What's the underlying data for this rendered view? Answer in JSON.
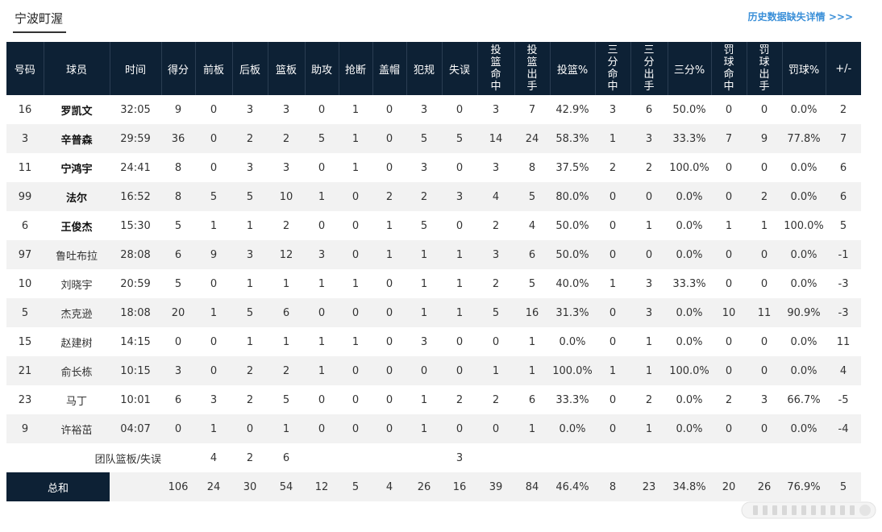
{
  "team_tab": "宁波町渥",
  "history_link": "历史数据缺失详情 >>>",
  "headers": [
    "号码",
    "球员",
    "时间",
    "得分",
    "前板",
    "后板",
    "篮板",
    "助攻",
    "抢断",
    "盖帽",
    "犯规",
    "失误",
    "投篮命中",
    "投篮出手",
    "投篮%",
    "三分命中",
    "三分出手",
    "三分%",
    "罚球命中",
    "罚球出手",
    "罚球%",
    "+/-"
  ],
  "players": [
    {
      "num": "16",
      "name": "罗凯文",
      "starter": true,
      "stats": [
        "32:05",
        "9",
        "0",
        "3",
        "3",
        "0",
        "1",
        "0",
        "3",
        "0",
        "3",
        "7",
        "42.9%",
        "3",
        "6",
        "50.0%",
        "0",
        "0",
        "0.0%",
        "2"
      ]
    },
    {
      "num": "3",
      "name": "辛普森",
      "starter": true,
      "stats": [
        "29:59",
        "36",
        "0",
        "2",
        "2",
        "5",
        "1",
        "0",
        "5",
        "5",
        "14",
        "24",
        "58.3%",
        "1",
        "3",
        "33.3%",
        "7",
        "9",
        "77.8%",
        "7"
      ]
    },
    {
      "num": "11",
      "name": "宁鸿宇",
      "starter": true,
      "stats": [
        "24:41",
        "8",
        "0",
        "3",
        "3",
        "0",
        "1",
        "0",
        "3",
        "0",
        "3",
        "8",
        "37.5%",
        "2",
        "2",
        "100.0%",
        "0",
        "0",
        "0.0%",
        "6"
      ]
    },
    {
      "num": "99",
      "name": "法尔",
      "starter": true,
      "stats": [
        "16:52",
        "8",
        "5",
        "5",
        "10",
        "1",
        "0",
        "2",
        "2",
        "3",
        "4",
        "5",
        "80.0%",
        "0",
        "0",
        "0.0%",
        "0",
        "2",
        "0.0%",
        "6"
      ]
    },
    {
      "num": "6",
      "name": "王俊杰",
      "starter": true,
      "stats": [
        "15:30",
        "5",
        "1",
        "1",
        "2",
        "0",
        "0",
        "1",
        "5",
        "0",
        "2",
        "4",
        "50.0%",
        "0",
        "1",
        "0.0%",
        "1",
        "1",
        "100.0%",
        "5"
      ]
    },
    {
      "num": "97",
      "name": "鲁吐布拉",
      "starter": false,
      "stats": [
        "28:08",
        "6",
        "9",
        "3",
        "12",
        "3",
        "0",
        "1",
        "1",
        "1",
        "3",
        "6",
        "50.0%",
        "0",
        "0",
        "0.0%",
        "0",
        "0",
        "0.0%",
        "-1"
      ]
    },
    {
      "num": "10",
      "name": "刘晓宇",
      "starter": false,
      "stats": [
        "20:59",
        "5",
        "0",
        "1",
        "1",
        "1",
        "1",
        "0",
        "1",
        "1",
        "2",
        "5",
        "40.0%",
        "1",
        "3",
        "33.3%",
        "0",
        "0",
        "0.0%",
        "-3"
      ]
    },
    {
      "num": "5",
      "name": "杰克逊",
      "starter": false,
      "stats": [
        "18:08",
        "20",
        "1",
        "5",
        "6",
        "0",
        "0",
        "0",
        "1",
        "1",
        "5",
        "16",
        "31.3%",
        "0",
        "3",
        "0.0%",
        "10",
        "11",
        "90.9%",
        "-3"
      ]
    },
    {
      "num": "15",
      "name": "赵建树",
      "starter": false,
      "stats": [
        "14:15",
        "0",
        "0",
        "1",
        "1",
        "1",
        "1",
        "0",
        "3",
        "0",
        "0",
        "1",
        "0.0%",
        "0",
        "1",
        "0.0%",
        "0",
        "0",
        "0.0%",
        "11"
      ]
    },
    {
      "num": "21",
      "name": "俞长栋",
      "starter": false,
      "stats": [
        "10:15",
        "3",
        "0",
        "2",
        "2",
        "1",
        "0",
        "0",
        "0",
        "0",
        "1",
        "1",
        "100.0%",
        "1",
        "1",
        "100.0%",
        "0",
        "0",
        "0.0%",
        "4"
      ]
    },
    {
      "num": "23",
      "name": "马丁",
      "starter": false,
      "stats": [
        "10:01",
        "6",
        "3",
        "2",
        "5",
        "0",
        "0",
        "0",
        "1",
        "2",
        "2",
        "6",
        "33.3%",
        "0",
        "2",
        "0.0%",
        "2",
        "3",
        "66.7%",
        "-5"
      ]
    },
    {
      "num": "9",
      "name": "许裕茁",
      "starter": false,
      "stats": [
        "04:07",
        "0",
        "1",
        "0",
        "1",
        "0",
        "0",
        "0",
        "1",
        "0",
        "0",
        "1",
        "0.0%",
        "0",
        "1",
        "0.0%",
        "0",
        "0",
        "0.0%",
        "-4"
      ]
    }
  ],
  "team_row": {
    "label": "团队篮板/失误",
    "oreb": "4",
    "dreb": "2",
    "reb": "6",
    "tov": "3"
  },
  "total_row": {
    "label": "总和",
    "stats": [
      "",
      "106",
      "24",
      "30",
      "54",
      "12",
      "5",
      "4",
      "26",
      "16",
      "39",
      "84",
      "46.4%",
      "8",
      "23",
      "34.8%",
      "20",
      "26",
      "76.9%",
      "5"
    ]
  }
}
